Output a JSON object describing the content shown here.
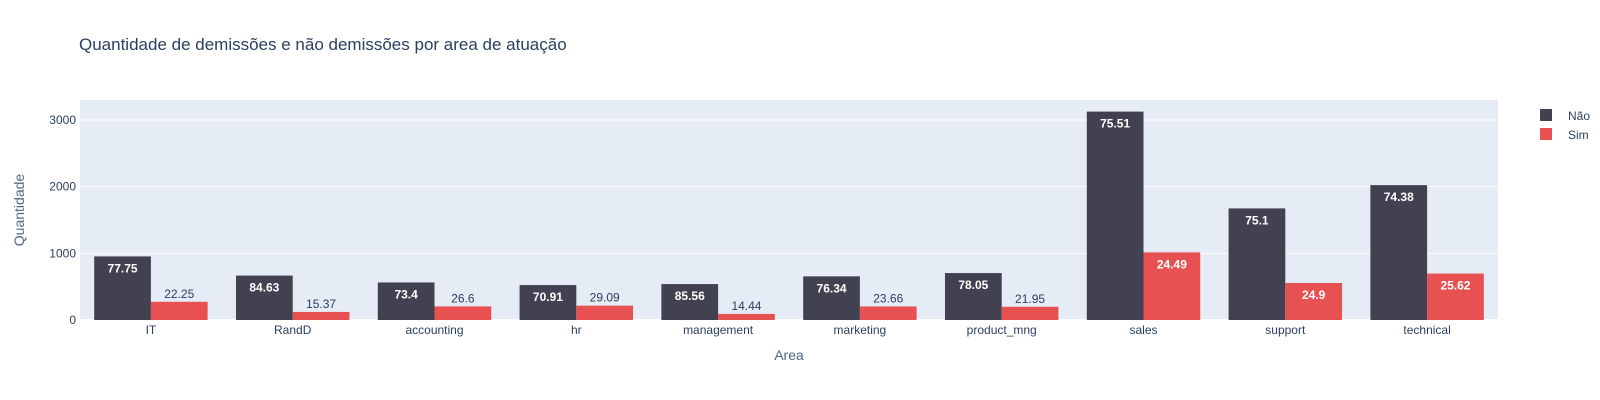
{
  "chart_data": {
    "type": "bar",
    "title": "Quantidade de demissões e não demissões por area de atuação",
    "xlabel": "Area",
    "ylabel": "Quantidade",
    "ylim": [
      0,
      3300
    ],
    "yticks": [
      0,
      1000,
      2000,
      3000
    ],
    "ytick_labels": [
      "0",
      "1000",
      "2000",
      "3000"
    ],
    "grid": true,
    "legend_position": "top-right",
    "categories": [
      "IT",
      "RandD",
      "accounting",
      "hr",
      "management",
      "marketing",
      "product_mng",
      "sales",
      "support",
      "technical"
    ],
    "series": [
      {
        "name": "Não",
        "color": "#414152",
        "values": [
          954,
          666,
          563,
          524,
          539,
          655,
          704,
          3126,
          1674,
          2023
        ],
        "labels": [
          "77.75",
          "84.63",
          "73.4",
          "70.91",
          "85.56",
          "76.34",
          "78.05",
          "75.51",
          "75.1",
          "74.38"
        ]
      },
      {
        "name": "Sim",
        "color": "#E75151",
        "values": [
          273,
          121,
          204,
          215,
          91,
          203,
          198,
          1014,
          555,
          697
        ],
        "labels": [
          "22.25",
          "15.37",
          "26.6",
          "29.09",
          "14.44",
          "23.66",
          "21.95",
          "24.49",
          "24.9",
          "25.62"
        ]
      }
    ]
  }
}
